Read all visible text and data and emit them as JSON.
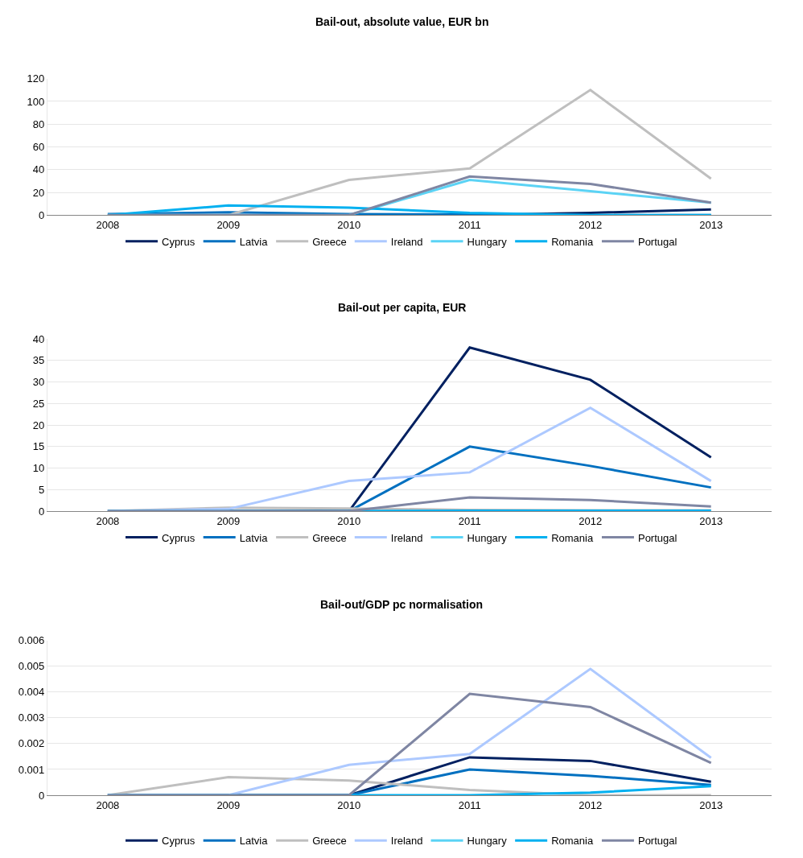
{
  "chart_data": [
    {
      "type": "line",
      "title": "Bail-out, absolute value, EUR bn",
      "categories": [
        "2008",
        "2009",
        "2010",
        "2011",
        "2012",
        "2013"
      ],
      "ylim": [
        0,
        120
      ],
      "yticks": [
        0,
        20,
        40,
        60,
        80,
        100,
        120
      ],
      "grid": "y",
      "legend": "bottom",
      "series": [
        {
          "name": "Cyprus",
          "color": "#002060",
          "values": [
            null,
            null,
            null,
            0,
            2,
            5
          ]
        },
        {
          "name": "Latvia",
          "color": "#0070c0",
          "values": [
            1,
            2.5,
            1,
            0.5,
            0,
            0
          ]
        },
        {
          "name": "Greece",
          "color": "#bfbfbf",
          "values": [
            0,
            0,
            31,
            41,
            110,
            32
          ]
        },
        {
          "name": "Ireland",
          "color": "#adc9ff",
          "values": [
            null,
            null,
            null,
            null,
            null,
            null
          ]
        },
        {
          "name": "Hungary",
          "color": "#5bd3f5",
          "values": [
            0,
            0,
            0,
            31,
            21,
            11
          ]
        },
        {
          "name": "Romania",
          "color": "#00b0f0",
          "values": [
            0,
            8.5,
            6.5,
            2,
            0,
            0
          ]
        },
        {
          "name": "Portugal",
          "color": "#7f86a3",
          "values": [
            0,
            0,
            0,
            34,
            27.5,
            11
          ]
        }
      ]
    },
    {
      "type": "line",
      "title": "Bail-out per capita, EUR",
      "categories": [
        "2008",
        "2009",
        "2010",
        "2011",
        "2012",
        "2013"
      ],
      "ylim": [
        0,
        40
      ],
      "yticks": [
        0,
        5,
        10,
        15,
        20,
        25,
        30,
        35,
        40
      ],
      "grid": "y",
      "legend": "bottom",
      "series": [
        {
          "name": "Cyprus",
          "color": "#002060",
          "values": [
            0,
            0,
            0,
            38,
            30.5,
            12.5
          ]
        },
        {
          "name": "Latvia",
          "color": "#0070c0",
          "values": [
            0,
            0,
            0,
            15,
            10.5,
            5.5
          ]
        },
        {
          "name": "Greece",
          "color": "#bfbfbf",
          "values": [
            0,
            0.8,
            0.6,
            0.3,
            0.2,
            0.2
          ]
        },
        {
          "name": "Ireland",
          "color": "#adc9ff",
          "values": [
            0,
            0.5,
            7,
            9,
            24,
            7
          ]
        },
        {
          "name": "Hungary",
          "color": "#5bd3f5",
          "values": [
            null,
            null,
            null,
            null,
            null,
            null
          ]
        },
        {
          "name": "Romania",
          "color": "#00b0f0",
          "values": [
            0,
            0,
            0,
            0.1,
            0.1,
            0.1
          ]
        },
        {
          "name": "Portugal",
          "color": "#7f86a3",
          "values": [
            0,
            0,
            0,
            3.2,
            2.6,
            1.1
          ]
        }
      ]
    },
    {
      "type": "line",
      "title": "Bail-out/GDP pc normalisation",
      "categories": [
        "2008",
        "2009",
        "2010",
        "2011",
        "2012",
        "2013"
      ],
      "ylim": [
        0,
        0.006
      ],
      "yticks": [
        0,
        0.001,
        0.002,
        0.003,
        0.004,
        0.005,
        0.006
      ],
      "grid": "y",
      "legend": "bottom",
      "series": [
        {
          "name": "Cyprus",
          "color": "#002060",
          "values": [
            0,
            0,
            0,
            0.00147,
            0.00133,
            0.00052
          ]
        },
        {
          "name": "Latvia",
          "color": "#0070c0",
          "values": [
            0,
            0,
            0,
            0.001,
            0.00075,
            0.0004
          ]
        },
        {
          "name": "Greece",
          "color": "#bfbfbf",
          "values": [
            0,
            0.0007,
            0.00057,
            0.0002,
            0,
            0
          ]
        },
        {
          "name": "Ireland",
          "color": "#adc9ff",
          "values": [
            0,
            0,
            0.00118,
            0.0016,
            0.0049,
            0.00145
          ]
        },
        {
          "name": "Hungary",
          "color": "#5bd3f5",
          "values": [
            null,
            null,
            null,
            null,
            null,
            null
          ]
        },
        {
          "name": "Romania",
          "color": "#00b0f0",
          "values": [
            0,
            0,
            0,
            0,
            0.0001,
            0.00035
          ]
        },
        {
          "name": "Portugal",
          "color": "#7f86a3",
          "values": [
            0,
            0,
            0,
            0.00393,
            0.00342,
            0.00125
          ]
        }
      ]
    }
  ]
}
